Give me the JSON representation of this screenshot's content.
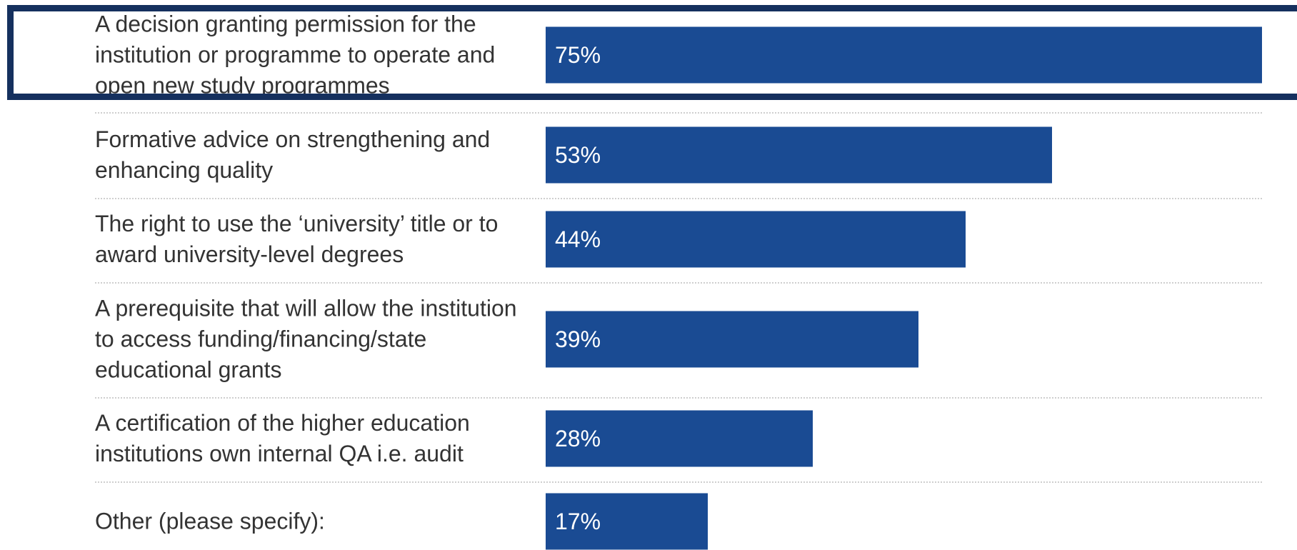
{
  "chart_data": {
    "type": "bar",
    "orientation": "horizontal",
    "categories": [
      "A decision granting permission for the institution or programme to operate and open new study programmes",
      "Formative advice on strengthening and enhancing quality",
      "The right to use the ‘university’ title or to award university-level degrees",
      "A prerequisite that will allow the institution to access funding/financing/state educational grants",
      "A certification of the higher education institutions own internal QA i.e. audit",
      "Other (please specify):"
    ],
    "values": [
      75,
      53,
      44,
      39,
      28,
      17
    ],
    "value_labels": [
      "75%",
      "53%",
      "44%",
      "39%",
      "28%",
      "17%"
    ],
    "unit": "%",
    "xlim": [
      0,
      75
    ],
    "grid": false,
    "highlighted_category_index": 0,
    "colors": {
      "bar": "#1a4b93",
      "bar_text": "#ffffff",
      "label_text": "#333333",
      "divider": "#cfcfcf",
      "highlight_frame": "#15305e"
    }
  }
}
